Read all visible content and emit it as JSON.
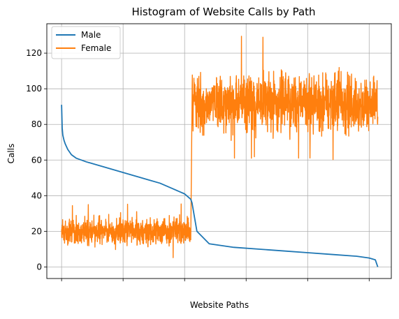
{
  "chart_data": {
    "type": "line",
    "title": "Histogram of Website Calls by Path",
    "xlabel": "Website Paths",
    "ylabel": "Calls",
    "ylim": [
      -6.5,
      136.5
    ],
    "yticks": [
      0,
      20,
      40,
      60,
      80,
      100,
      120
    ],
    "grid": true,
    "legend_position": "top-left",
    "x_tick_labels_shown": false,
    "colors": {
      "Male": "#1f77b4",
      "Female": "#ff7f0e"
    },
    "series": [
      {
        "name": "Male",
        "x": [
          0,
          0.5,
          1,
          2,
          3,
          5,
          8,
          12,
          20,
          30,
          40,
          50,
          60,
          70,
          80,
          90,
          100,
          105,
          106,
          110,
          120,
          140,
          160,
          180,
          200,
          220,
          240,
          250,
          255,
          256,
          257
        ],
        "values": [
          91,
          78,
          74,
          71,
          69,
          66,
          63,
          61,
          59,
          57,
          55,
          53,
          51,
          49,
          47,
          44,
          41,
          38,
          36,
          20,
          13,
          11,
          10,
          9,
          8,
          7,
          6,
          5,
          4,
          2,
          0
        ]
      },
      {
        "name": "Female",
        "x_range": [
          0,
          257
        ],
        "segments": [
          {
            "x_range": [
              0,
              105
            ],
            "mean": 20,
            "min": 5,
            "max": 36
          },
          {
            "x_range": [
              106,
              257
            ],
            "mean": 92,
            "min": 60,
            "max": 130
          }
        ]
      }
    ]
  }
}
